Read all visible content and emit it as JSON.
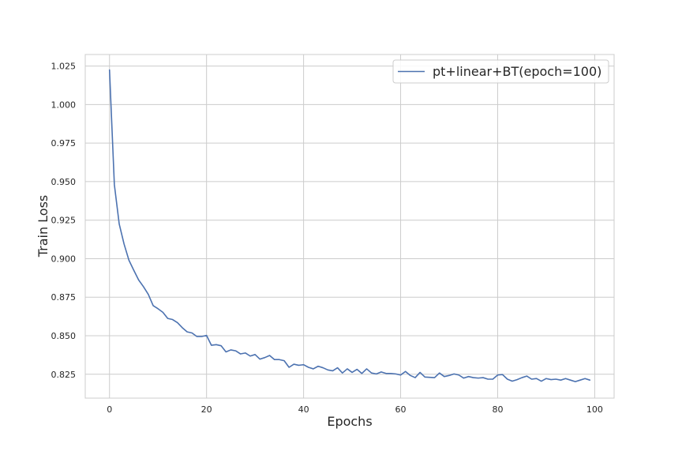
{
  "chart_data": {
    "type": "line",
    "title": "",
    "xlabel": "Epochs",
    "ylabel": "Train Loss",
    "xlim": [
      -5,
      104
    ],
    "ylim": [
      0.8095,
      1.0325
    ],
    "xticks": [
      0,
      20,
      40,
      60,
      80,
      100
    ],
    "yticks": [
      0.825,
      0.85,
      0.875,
      0.9,
      0.925,
      0.95,
      0.975,
      1.0,
      1.025
    ],
    "xtick_labels": [
      "0",
      "20",
      "40",
      "60",
      "80",
      "100"
    ],
    "ytick_labels": [
      "0.825",
      "0.850",
      "0.875",
      "0.900",
      "0.925",
      "0.950",
      "0.975",
      "1.000",
      "1.025"
    ],
    "grid": true,
    "legend_position": "top-right",
    "series": [
      {
        "name": "pt+linear+BT(epoch=100)",
        "color": "#4c72b0",
        "x": [
          0,
          1,
          2,
          3,
          4,
          5,
          6,
          7,
          8,
          9,
          10,
          11,
          12,
          13,
          14,
          15,
          16,
          17,
          18,
          19,
          20,
          21,
          22,
          23,
          24,
          25,
          26,
          27,
          28,
          29,
          30,
          31,
          32,
          33,
          34,
          35,
          36,
          37,
          38,
          39,
          40,
          41,
          42,
          43,
          44,
          45,
          46,
          47,
          48,
          49,
          50,
          51,
          52,
          53,
          54,
          55,
          56,
          57,
          58,
          59,
          60,
          61,
          62,
          63,
          64,
          65,
          66,
          67,
          68,
          69,
          70,
          71,
          72,
          73,
          74,
          75,
          76,
          77,
          78,
          79,
          80,
          81,
          82,
          83,
          84,
          85,
          86,
          87,
          88,
          89,
          90,
          91,
          92,
          93,
          94,
          95,
          96,
          97,
          98,
          99
        ],
        "values": [
          1.0225,
          0.948,
          0.9225,
          0.9095,
          0.899,
          0.8925,
          0.8862,
          0.8818,
          0.8768,
          0.8695,
          0.8675,
          0.8652,
          0.8612,
          0.8605,
          0.8585,
          0.8552,
          0.8525,
          0.8518,
          0.8495,
          0.8495,
          0.8502,
          0.8438,
          0.8442,
          0.8435,
          0.8395,
          0.8408,
          0.8402,
          0.8382,
          0.8388,
          0.8368,
          0.8378,
          0.8348,
          0.8358,
          0.8372,
          0.8345,
          0.8345,
          0.8338,
          0.8295,
          0.8315,
          0.8308,
          0.8312,
          0.8295,
          0.8285,
          0.8302,
          0.8292,
          0.8278,
          0.8272,
          0.8292,
          0.8258,
          0.8285,
          0.8262,
          0.8282,
          0.8255,
          0.8285,
          0.8258,
          0.8252,
          0.8265,
          0.8255,
          0.8255,
          0.8252,
          0.8245,
          0.8268,
          0.8242,
          0.8228,
          0.8262,
          0.8232,
          0.823,
          0.8228,
          0.8258,
          0.8235,
          0.8242,
          0.8252,
          0.8245,
          0.8225,
          0.8235,
          0.8228,
          0.8225,
          0.8228,
          0.8218,
          0.8218,
          0.8245,
          0.8248,
          0.8218,
          0.8205,
          0.8215,
          0.8228,
          0.8238,
          0.8218,
          0.8222,
          0.8205,
          0.8222,
          0.8215,
          0.8218,
          0.8212,
          0.8222,
          0.8212,
          0.8202,
          0.8212,
          0.8222,
          0.8212
        ]
      }
    ]
  }
}
